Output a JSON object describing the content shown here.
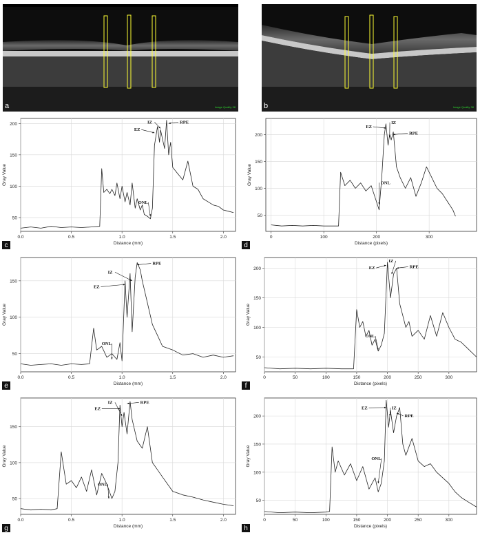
{
  "panels": {
    "a": {
      "letter": "a",
      "overlay_text": "Image Quality 38"
    },
    "b": {
      "letter": "b",
      "overlay_text": "Image Quality 38"
    }
  },
  "chart_data": [
    {
      "id": "c",
      "letter": "c",
      "type": "line",
      "xlabel": "Distance (mm)",
      "ylabel": "Gray Value",
      "xlim": [
        0,
        2.12
      ],
      "ylim": [
        28,
        208
      ],
      "xticks": [
        0.0,
        0.5,
        1.0,
        1.5,
        2.0
      ],
      "xtick_labels": [
        "0.0",
        "0.5",
        "1.0",
        "1.5",
        "2.0"
      ],
      "yticks": [
        50,
        100,
        150,
        200
      ],
      "ytick_labels": [
        "50",
        "100",
        "150",
        "200"
      ],
      "grid": true,
      "series": [
        {
          "x": [
            0,
            0.1,
            0.2,
            0.3,
            0.4,
            0.5,
            0.6,
            0.7,
            0.78,
            0.8,
            0.82,
            0.85,
            0.88,
            0.9,
            0.93,
            0.95,
            0.98,
            1.0,
            1.03,
            1.05,
            1.08,
            1.1,
            1.13,
            1.15,
            1.18,
            1.2,
            1.22,
            1.25,
            1.28,
            1.3,
            1.32,
            1.34,
            1.35,
            1.37,
            1.38,
            1.4,
            1.42,
            1.44,
            1.46,
            1.48,
            1.5,
            1.55,
            1.6,
            1.65,
            1.7,
            1.75,
            1.8,
            1.85,
            1.9,
            1.95,
            2.0,
            2.05,
            2.1
          ],
          "y": [
            33,
            35,
            33,
            36,
            34,
            35,
            34,
            35,
            36,
            128,
            90,
            95,
            88,
            95,
            85,
            105,
            80,
            100,
            75,
            90,
            70,
            105,
            65,
            80,
            62,
            70,
            55,
            52,
            48,
            65,
            165,
            185,
            195,
            170,
            190,
            175,
            160,
            205,
            150,
            170,
            130,
            120,
            110,
            140,
            100,
            95,
            80,
            75,
            70,
            68,
            62,
            60,
            58
          ]
        }
      ],
      "annotations": [
        {
          "text": "EZ",
          "x": 1.32,
          "y": 185,
          "tx": 1.12,
          "ty": 188
        },
        {
          "text": "IZ",
          "x": 1.38,
          "y": 192,
          "tx": 1.25,
          "ty": 200
        },
        {
          "text": "RPE",
          "x": 1.46,
          "y": 200,
          "tx": 1.57,
          "ty": 200
        },
        {
          "text": "ONL",
          "x": 1.28,
          "y": 52,
          "tx": 1.16,
          "ty": 72
        }
      ]
    },
    {
      "id": "d",
      "letter": "d",
      "type": "line",
      "xlabel": "Distance (pixels)",
      "ylabel": "Gray Value",
      "xlim": [
        -10,
        390
      ],
      "ylim": [
        20,
        230
      ],
      "xticks": [
        0,
        100,
        200,
        300
      ],
      "xtick_labels": [
        "0",
        "100",
        "200",
        "300"
      ],
      "yticks": [
        50,
        100,
        150,
        200
      ],
      "ytick_labels": [
        "50",
        "100",
        "150",
        "200"
      ],
      "grid": true,
      "series": [
        {
          "x": [
            0,
            20,
            40,
            60,
            80,
            100,
            120,
            128,
            132,
            140,
            150,
            160,
            170,
            180,
            190,
            200,
            205,
            210,
            215,
            218,
            222,
            225,
            228,
            232,
            238,
            245,
            255,
            265,
            275,
            285,
            295,
            305,
            315,
            325,
            335,
            345,
            350
          ],
          "y": [
            32,
            30,
            31,
            30,
            31,
            30,
            30,
            30,
            130,
            105,
            115,
            100,
            110,
            95,
            105,
            75,
            60,
            120,
            200,
            220,
            180,
            200,
            190,
            205,
            140,
            120,
            100,
            120,
            85,
            110,
            140,
            120,
            100,
            90,
            75,
            60,
            48
          ]
        }
      ],
      "annotations": [
        {
          "text": "EZ",
          "x": 218,
          "y": 212,
          "tx": 180,
          "ty": 212
        },
        {
          "text": "IZ",
          "x": 225,
          "y": 195,
          "tx": 228,
          "ty": 220
        },
        {
          "text": "RPE",
          "x": 232,
          "y": 200,
          "tx": 262,
          "ty": 200
        },
        {
          "text": "ONL",
          "x": 205,
          "y": 70,
          "tx": 208,
          "ty": 108
        }
      ]
    },
    {
      "id": "e",
      "letter": "e",
      "type": "line",
      "xlabel": "Distance (mm)",
      "ylabel": "Gray Value",
      "xlim": [
        0,
        2.12
      ],
      "ylim": [
        25,
        182
      ],
      "xticks": [
        0.0,
        0.5,
        1.0,
        1.5,
        2.0
      ],
      "xtick_labels": [
        "0.0",
        "0.5",
        "1.0",
        "1.5",
        "2.0"
      ],
      "yticks": [
        50,
        100,
        150
      ],
      "ytick_labels": [
        "50",
        "100",
        "150"
      ],
      "grid": true,
      "series": [
        {
          "x": [
            0,
            0.1,
            0.2,
            0.3,
            0.4,
            0.5,
            0.6,
            0.68,
            0.72,
            0.75,
            0.8,
            0.85,
            0.9,
            0.95,
            0.98,
            1.0,
            1.03,
            1.05,
            1.08,
            1.1,
            1.13,
            1.15,
            1.18,
            1.2,
            1.25,
            1.3,
            1.35,
            1.4,
            1.5,
            1.6,
            1.7,
            1.8,
            1.9,
            2.0,
            2.1
          ],
          "y": [
            36,
            34,
            35,
            36,
            34,
            36,
            35,
            36,
            85,
            55,
            60,
            45,
            50,
            42,
            65,
            40,
            150,
            100,
            160,
            80,
            155,
            175,
            165,
            150,
            120,
            90,
            75,
            60,
            55,
            48,
            50,
            45,
            48,
            45,
            47
          ]
        }
      ],
      "annotations": [
        {
          "text": "EZ",
          "x": 1.03,
          "y": 145,
          "tx": 0.72,
          "ty": 140
        },
        {
          "text": "IZ",
          "x": 1.1,
          "y": 150,
          "tx": 0.86,
          "ty": 160
        },
        {
          "text": "RPE",
          "x": 1.15,
          "y": 172,
          "tx": 1.3,
          "ty": 172
        },
        {
          "text": "ONL",
          "x": 0.9,
          "y": 42,
          "tx": 0.8,
          "ty": 62
        }
      ]
    },
    {
      "id": "f",
      "letter": "f",
      "type": "line",
      "xlabel": "Distance (pixels)",
      "ylabel": "Gray Value",
      "xlim": [
        0,
        345
      ],
      "ylim": [
        25,
        218
      ],
      "xticks": [
        0,
        50,
        100,
        150,
        200,
        250,
        300
      ],
      "xtick_labels": [
        "0",
        "50",
        "100",
        "150",
        "200",
        "250",
        "300"
      ],
      "yticks": [
        50,
        100,
        150,
        200
      ],
      "ytick_labels": [
        "50",
        "100",
        "150",
        "200"
      ],
      "grid": true,
      "series": [
        {
          "x": [
            0,
            25,
            50,
            75,
            100,
            125,
            145,
            150,
            155,
            160,
            165,
            170,
            175,
            180,
            185,
            190,
            195,
            200,
            205,
            210,
            215,
            220,
            225,
            230,
            235,
            240,
            250,
            260,
            270,
            280,
            290,
            300,
            310,
            320,
            330,
            345
          ],
          "y": [
            32,
            30,
            31,
            30,
            31,
            30,
            30,
            130,
            100,
            110,
            85,
            95,
            70,
            80,
            60,
            70,
            90,
            210,
            150,
            190,
            200,
            140,
            120,
            100,
            110,
            85,
            95,
            80,
            120,
            85,
            125,
            100,
            80,
            75,
            65,
            50
          ]
        }
      ],
      "annotations": [
        {
          "text": "EZ",
          "x": 198,
          "y": 205,
          "tx": 170,
          "ty": 198
        },
        {
          "text": "IZ",
          "x": 207,
          "y": 190,
          "tx": 202,
          "ty": 210
        },
        {
          "text": "RPE",
          "x": 215,
          "y": 200,
          "tx": 236,
          "ty": 200
        },
        {
          "text": "ONL",
          "x": 185,
          "y": 62,
          "tx": 164,
          "ty": 83
        }
      ]
    },
    {
      "id": "g",
      "letter": "g",
      "type": "line",
      "xlabel": "Distance (mm)",
      "ylabel": "Gray Value",
      "xlim": [
        0,
        2.12
      ],
      "ylim": [
        28,
        190
      ],
      "xticks": [
        0.0,
        0.5,
        1.0,
        1.5,
        2.0
      ],
      "xtick_labels": [
        "0.0",
        "0.5",
        "1.0",
        "1.5",
        "2.0"
      ],
      "yticks": [
        50,
        100,
        150
      ],
      "ytick_labels": [
        "50",
        "100",
        "150"
      ],
      "grid": true,
      "series": [
        {
          "x": [
            0,
            0.1,
            0.2,
            0.3,
            0.36,
            0.4,
            0.45,
            0.5,
            0.55,
            0.6,
            0.65,
            0.7,
            0.75,
            0.8,
            0.85,
            0.9,
            0.93,
            0.96,
            0.98,
            1.0,
            1.02,
            1.05,
            1.08,
            1.1,
            1.15,
            1.2,
            1.25,
            1.3,
            1.35,
            1.4,
            1.5,
            1.6,
            1.7,
            1.8,
            1.9,
            2.0,
            2.1
          ],
          "y": [
            36,
            34,
            35,
            34,
            36,
            115,
            70,
            75,
            65,
            80,
            60,
            90,
            55,
            85,
            70,
            50,
            60,
            100,
            180,
            150,
            170,
            140,
            185,
            160,
            130,
            120,
            150,
            100,
            90,
            80,
            60,
            55,
            52,
            48,
            45,
            42,
            40
          ]
        }
      ],
      "annotations": [
        {
          "text": "EZ",
          "x": 0.98,
          "y": 175,
          "tx": 0.73,
          "ty": 173
        },
        {
          "text": "IZ",
          "x": 1.0,
          "y": 165,
          "tx": 0.86,
          "ty": 182
        },
        {
          "text": "RPE",
          "x": 1.05,
          "y": 182,
          "tx": 1.18,
          "ty": 182
        },
        {
          "text": "ONL",
          "x": 0.87,
          "y": 50,
          "tx": 0.76,
          "ty": 68
        }
      ]
    },
    {
      "id": "h",
      "letter": "h",
      "type": "line",
      "xlabel": "Distance (pixels)",
      "ylabel": "Gray Value",
      "xlim": [
        0,
        345
      ],
      "ylim": [
        25,
        232
      ],
      "xticks": [
        0,
        50,
        100,
        150,
        200,
        250,
        300
      ],
      "xtick_labels": [
        "0",
        "50",
        "100",
        "150",
        "200",
        "250",
        "300"
      ],
      "yticks": [
        50,
        100,
        150,
        200
      ],
      "ytick_labels": [
        "50",
        "100",
        "150",
        "200"
      ],
      "grid": true,
      "series": [
        {
          "x": [
            0,
            25,
            50,
            75,
            100,
            106,
            110,
            115,
            120,
            130,
            140,
            150,
            160,
            170,
            180,
            185,
            190,
            195,
            198,
            202,
            205,
            210,
            215,
            220,
            225,
            230,
            240,
            250,
            260,
            270,
            280,
            290,
            300,
            310,
            320,
            330,
            345
          ],
          "y": [
            30,
            28,
            29,
            28,
            29,
            30,
            145,
            100,
            120,
            95,
            115,
            85,
            110,
            70,
            90,
            65,
            80,
            120,
            228,
            180,
            210,
            170,
            200,
            215,
            150,
            130,
            160,
            120,
            110,
            115,
            100,
            90,
            80,
            65,
            55,
            48,
            38
          ]
        }
      ],
      "annotations": [
        {
          "text": "EZ",
          "x": 198,
          "y": 215,
          "tx": 158,
          "ty": 212
        },
        {
          "text": "IZ",
          "x": 204,
          "y": 200,
          "tx": 207,
          "ty": 212
        },
        {
          "text": "RPE",
          "x": 215,
          "y": 205,
          "tx": 228,
          "ty": 198
        },
        {
          "text": "ONL",
          "x": 185,
          "y": 80,
          "tx": 174,
          "ty": 122
        }
      ]
    }
  ]
}
